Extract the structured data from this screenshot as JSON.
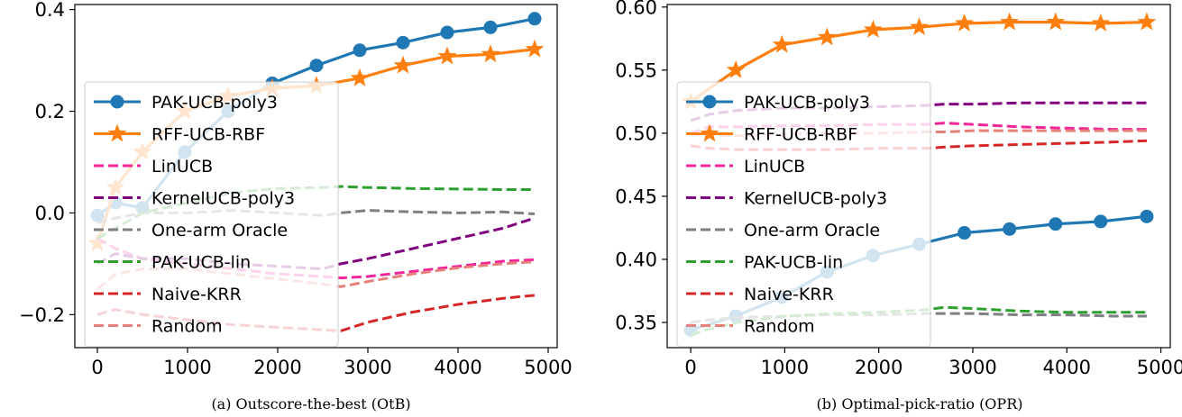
{
  "chart_data": [
    {
      "type": "line",
      "caption": "(a) Outscore-the-best (OtB)",
      "title": "",
      "xlabel": "",
      "ylabel": "",
      "xlim": [
        -250,
        5100
      ],
      "ylim": [
        -0.265,
        0.41
      ],
      "xticks": [
        0,
        1000,
        2000,
        3000,
        4000,
        5000
      ],
      "xtick_labels": [
        "0",
        "1000",
        "2000",
        "3000",
        "4000",
        "5000"
      ],
      "yticks": [
        -0.2,
        0.0,
        0.2,
        0.4
      ],
      "ytick_labels": [
        "−0.2",
        "0.0",
        "0.2",
        "0.4"
      ],
      "grid": false,
      "legend_position": "center-left",
      "series": [
        {
          "name": "PAK-UCB-poly3",
          "color": "#1f77b4",
          "style": "solid",
          "marker": "circle",
          "x": [
            0,
            200,
            500,
            970,
            1450,
            1940,
            2430,
            2910,
            3390,
            3880,
            4360,
            4850
          ],
          "y": [
            -0.005,
            0.02,
            0.01,
            0.12,
            0.2,
            0.255,
            0.29,
            0.32,
            0.335,
            0.355,
            0.365,
            0.382
          ]
        },
        {
          "name": "RFF-UCB-RBF",
          "color": "#ff7f0e",
          "style": "solid",
          "marker": "star",
          "x": [
            0,
            200,
            500,
            970,
            1450,
            1940,
            2430,
            2910,
            3390,
            3880,
            4360,
            4850
          ],
          "y": [
            -0.06,
            0.05,
            0.12,
            0.2,
            0.23,
            0.245,
            0.25,
            0.265,
            0.29,
            0.308,
            0.312,
            0.322
          ]
        },
        {
          "name": "LinUCB",
          "color": "#f0249b",
          "style": "dashed",
          "x": [
            0,
            200,
            500,
            1000,
            1500,
            2000,
            2500,
            2700,
            3000,
            3500,
            4000,
            4500,
            4850
          ],
          "y": [
            -0.05,
            -0.07,
            -0.09,
            -0.1,
            -0.11,
            -0.12,
            -0.125,
            -0.128,
            -0.125,
            -0.115,
            -0.105,
            -0.095,
            -0.092
          ]
        },
        {
          "name": "KernelUCB-poly3",
          "color": "#800080",
          "style": "dashed",
          "x": [
            0,
            200,
            500,
            1000,
            1500,
            2000,
            2500,
            2700,
            3000,
            3500,
            4000,
            4500,
            4850
          ],
          "y": [
            -0.1,
            -0.08,
            -0.09,
            -0.09,
            -0.1,
            -0.105,
            -0.11,
            -0.1,
            -0.09,
            -0.07,
            -0.05,
            -0.03,
            -0.01
          ]
        },
        {
          "name": "One-arm Oracle",
          "color": "#7f7f7f",
          "style": "dashed",
          "x": [
            0,
            200,
            500,
            1000,
            1500,
            2000,
            2500,
            2700,
            3000,
            3500,
            4000,
            4500,
            4850
          ],
          "y": [
            -0.02,
            -0.01,
            0.0,
            0.0,
            0.005,
            0.0,
            -0.005,
            0.0,
            0.005,
            0.002,
            0.0,
            0.002,
            -0.002
          ]
        },
        {
          "name": "PAK-UCB-lin",
          "color": "#2ca02c",
          "style": "dashed",
          "x": [
            0,
            200,
            500,
            1000,
            1500,
            2000,
            2500,
            2700,
            3000,
            3500,
            4000,
            4500,
            4850
          ],
          "y": [
            -0.05,
            -0.03,
            0.0,
            0.02,
            0.04,
            0.048,
            0.05,
            0.052,
            0.05,
            0.048,
            0.047,
            0.046,
            0.046
          ]
        },
        {
          "name": "Naive-KRR",
          "color": "#d62728",
          "style": "dashed",
          "x": [
            0,
            200,
            500,
            1000,
            1500,
            2000,
            2500,
            2700,
            3000,
            3500,
            4000,
            4500,
            4850
          ],
          "y": [
            -0.2,
            -0.19,
            -0.2,
            -0.21,
            -0.22,
            -0.225,
            -0.23,
            -0.232,
            -0.215,
            -0.195,
            -0.18,
            -0.168,
            -0.162
          ]
        },
        {
          "name": "Random",
          "color": "#e6807a",
          "style": "dashed",
          "x": [
            0,
            200,
            500,
            1000,
            1500,
            2000,
            2500,
            2700,
            3000,
            3500,
            4000,
            4500,
            4850
          ],
          "y": [
            -0.15,
            -0.12,
            -0.11,
            -0.11,
            -0.12,
            -0.13,
            -0.14,
            -0.145,
            -0.135,
            -0.12,
            -0.108,
            -0.1,
            -0.096
          ]
        }
      ]
    },
    {
      "type": "line",
      "caption": "(b) Optimal-pick-ratio (OPR)",
      "title": "",
      "xlabel": "",
      "ylabel": "",
      "xlim": [
        -250,
        5100
      ],
      "ylim": [
        0.33,
        0.602
      ],
      "xticks": [
        0,
        1000,
        2000,
        3000,
        4000,
        5000
      ],
      "xtick_labels": [
        "0",
        "1000",
        "2000",
        "3000",
        "4000",
        "5000"
      ],
      "yticks": [
        0.35,
        0.4,
        0.45,
        0.5,
        0.55,
        0.6
      ],
      "ytick_labels": [
        "0.35",
        "0.40",
        "0.45",
        "0.50",
        "0.55",
        "0.60"
      ],
      "grid": false,
      "legend_position": "center-left",
      "series": [
        {
          "name": "PAK-UCB-poly3",
          "color": "#1f77b4",
          "style": "solid",
          "marker": "circle",
          "x": [
            0,
            480,
            970,
            1450,
            1940,
            2430,
            2910,
            3390,
            3880,
            4360,
            4850
          ],
          "y": [
            0.344,
            0.355,
            0.37,
            0.39,
            0.403,
            0.412,
            0.421,
            0.424,
            0.428,
            0.43,
            0.434
          ]
        },
        {
          "name": "RFF-UCB-RBF",
          "color": "#ff7f0e",
          "style": "solid",
          "marker": "star",
          "x": [
            0,
            480,
            970,
            1450,
            1940,
            2430,
            2910,
            3390,
            3880,
            4360,
            4850
          ],
          "y": [
            0.525,
            0.55,
            0.57,
            0.576,
            0.582,
            0.584,
            0.587,
            0.588,
            0.588,
            0.587,
            0.588
          ]
        },
        {
          "name": "LinUCB",
          "color": "#f0249b",
          "style": "dashed",
          "x": [
            0,
            200,
            500,
            1000,
            1500,
            2000,
            2500,
            2700,
            3000,
            3500,
            4000,
            4500,
            4850
          ],
          "y": [
            0.5,
            0.505,
            0.505,
            0.506,
            0.506,
            0.507,
            0.507,
            0.508,
            0.507,
            0.505,
            0.504,
            0.503,
            0.503
          ]
        },
        {
          "name": "KernelUCB-poly3",
          "color": "#800080",
          "style": "dashed",
          "x": [
            0,
            200,
            500,
            1000,
            1500,
            2000,
            2500,
            2700,
            3000,
            3500,
            4000,
            4500,
            4850
          ],
          "y": [
            0.51,
            0.515,
            0.518,
            0.52,
            0.52,
            0.521,
            0.522,
            0.523,
            0.523,
            0.524,
            0.524,
            0.524,
            0.524
          ]
        },
        {
          "name": "One-arm Oracle",
          "color": "#7f7f7f",
          "style": "dashed",
          "x": [
            0,
            200,
            500,
            1000,
            1500,
            2000,
            2500,
            2700,
            3000,
            3500,
            4000,
            4500,
            4850
          ],
          "y": [
            0.35,
            0.352,
            0.354,
            0.355,
            0.356,
            0.356,
            0.357,
            0.357,
            0.357,
            0.356,
            0.356,
            0.355,
            0.355
          ]
        },
        {
          "name": "PAK-UCB-lin",
          "color": "#2ca02c",
          "style": "dashed",
          "x": [
            0,
            200,
            500,
            1000,
            1500,
            2000,
            2500,
            2700,
            3000,
            3500,
            4000,
            4500,
            4850
          ],
          "y": [
            0.34,
            0.345,
            0.35,
            0.355,
            0.357,
            0.358,
            0.36,
            0.362,
            0.361,
            0.359,
            0.358,
            0.358,
            0.358
          ]
        },
        {
          "name": "Naive-KRR",
          "color": "#d62728",
          "style": "dashed",
          "x": [
            0,
            200,
            500,
            1000,
            1500,
            2000,
            2500,
            2700,
            3000,
            3500,
            4000,
            4500,
            4850
          ],
          "y": [
            0.49,
            0.488,
            0.487,
            0.487,
            0.487,
            0.488,
            0.488,
            0.489,
            0.49,
            0.491,
            0.492,
            0.493,
            0.494
          ]
        },
        {
          "name": "Random",
          "color": "#e6807a",
          "style": "dashed",
          "x": [
            0,
            200,
            500,
            1000,
            1500,
            2000,
            2500,
            2700,
            3000,
            3500,
            4000,
            4500,
            4850
          ],
          "y": [
            0.5,
            0.498,
            0.498,
            0.499,
            0.5,
            0.5,
            0.501,
            0.501,
            0.502,
            0.502,
            0.502,
            0.502,
            0.502
          ]
        }
      ]
    }
  ]
}
